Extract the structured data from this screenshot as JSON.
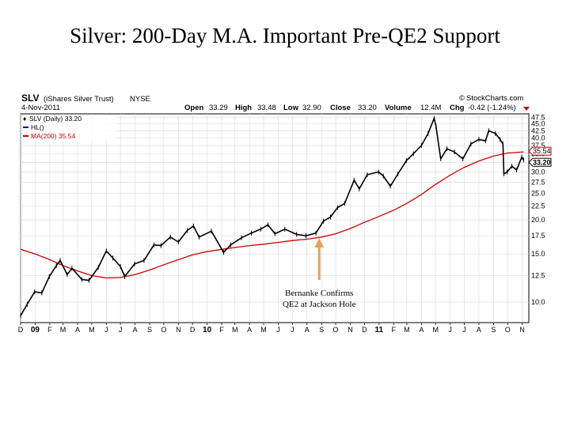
{
  "slide": {
    "title": "Silver: 200-Day M.A. Important Pre-QE2 Support"
  },
  "header": {
    "symbol": "SLV",
    "name": "(iShares Silver Trust)",
    "exchange": "NYSE",
    "date": "4-Nov-2011",
    "source": "StockCharts.com",
    "copyright": "©",
    "quote": {
      "open_label": "Open",
      "open": "33.29",
      "high_label": "High",
      "high": "33.48",
      "low_label": "Low",
      "low": "32.90",
      "close_label": "Close",
      "close": "33.20",
      "volume_label": "Volume",
      "volume": "12.4M",
      "chg_label": "Chg",
      "chg": "-0.42 (-1.24%)"
    }
  },
  "legend": {
    "price": "SLV (Daily) 33.20",
    "hl": "HL()",
    "ma": "MA(200) 35.54"
  },
  "colors": {
    "price": "#000000",
    "ma": "#cc0000",
    "arrow": "#e8a05a",
    "grid": "#d8d8d8",
    "hl_legend": "#000080"
  },
  "annotation": {
    "line1": "Bernanke Confirms",
    "line2": "QE2 at Jackson Hole",
    "date": "2010-08-27"
  },
  "chart_data": {
    "type": "line",
    "scale": "log",
    "ylim": [
      8.4,
      49
    ],
    "xlim": [
      "2008-12-01",
      "2011-11-15"
    ],
    "last_price_label": "33.20",
    "last_ma_label": "35.54",
    "y_ticks": [
      10.0,
      12.5,
      15.0,
      17.5,
      20.0,
      22.5,
      25.0,
      27.5,
      30.0,
      32.5,
      35.0,
      37.5,
      40.0,
      42.5,
      45.0,
      47.5
    ],
    "y_tick_labels": [
      "10.0",
      "12.5",
      "15.0",
      "17.5",
      "20.0",
      "22.5",
      "25.0",
      "27.5",
      "30.0",
      "32.5",
      "35.0",
      "37.5",
      "40.0",
      "42.5",
      "45.0",
      "47.5"
    ],
    "x_ticks": [
      {
        "label": "D",
        "date": "2008-12-01"
      },
      {
        "label": "09",
        "date": "2009-01-01",
        "bold": true
      },
      {
        "label": "F",
        "date": "2009-02-01"
      },
      {
        "label": "M",
        "date": "2009-03-01"
      },
      {
        "label": "A",
        "date": "2009-04-01"
      },
      {
        "label": "M",
        "date": "2009-05-01"
      },
      {
        "label": "J",
        "date": "2009-06-01"
      },
      {
        "label": "J",
        "date": "2009-07-01"
      },
      {
        "label": "A",
        "date": "2009-08-01"
      },
      {
        "label": "S",
        "date": "2009-09-01"
      },
      {
        "label": "O",
        "date": "2009-10-01"
      },
      {
        "label": "N",
        "date": "2009-11-01"
      },
      {
        "label": "D",
        "date": "2009-12-01"
      },
      {
        "label": "10",
        "date": "2010-01-01",
        "bold": true
      },
      {
        "label": "F",
        "date": "2010-02-01"
      },
      {
        "label": "M",
        "date": "2010-03-01"
      },
      {
        "label": "A",
        "date": "2010-04-01"
      },
      {
        "label": "M",
        "date": "2010-05-01"
      },
      {
        "label": "J",
        "date": "2010-06-01"
      },
      {
        "label": "J",
        "date": "2010-07-01"
      },
      {
        "label": "A",
        "date": "2010-08-01"
      },
      {
        "label": "S",
        "date": "2010-09-01"
      },
      {
        "label": "O",
        "date": "2010-10-01"
      },
      {
        "label": "N",
        "date": "2010-11-01"
      },
      {
        "label": "D",
        "date": "2010-12-01"
      },
      {
        "label": "11",
        "date": "2011-01-01",
        "bold": true
      },
      {
        "label": "F",
        "date": "2011-02-01"
      },
      {
        "label": "M",
        "date": "2011-03-01"
      },
      {
        "label": "A",
        "date": "2011-04-01"
      },
      {
        "label": "M",
        "date": "2011-05-01"
      },
      {
        "label": "J",
        "date": "2011-06-01"
      },
      {
        "label": "J",
        "date": "2011-07-01"
      },
      {
        "label": "A",
        "date": "2011-08-01"
      },
      {
        "label": "S",
        "date": "2011-09-01"
      },
      {
        "label": "O",
        "date": "2011-10-01"
      },
      {
        "label": "N",
        "date": "2011-11-01"
      }
    ],
    "series": [
      {
        "name": "SLV (Daily)",
        "points": [
          [
            "2008-12-01",
            8.9
          ],
          [
            "2008-12-15",
            9.8
          ],
          [
            "2008-12-31",
            10.9
          ],
          [
            "2009-01-15",
            10.8
          ],
          [
            "2009-01-31",
            12.4
          ],
          [
            "2009-02-15",
            13.6
          ],
          [
            "2009-02-23",
            14.2
          ],
          [
            "2009-03-10",
            12.6
          ],
          [
            "2009-03-20",
            13.3
          ],
          [
            "2009-04-10",
            12.1
          ],
          [
            "2009-04-25",
            12.0
          ],
          [
            "2009-05-15",
            13.4
          ],
          [
            "2009-06-01",
            15.4
          ],
          [
            "2009-06-15",
            14.5
          ],
          [
            "2009-07-01",
            13.5
          ],
          [
            "2009-07-10",
            12.4
          ],
          [
            "2009-07-31",
            13.8
          ],
          [
            "2009-08-20",
            14.2
          ],
          [
            "2009-09-10",
            16.2
          ],
          [
            "2009-09-25",
            16.1
          ],
          [
            "2009-10-15",
            17.3
          ],
          [
            "2009-11-01",
            16.6
          ],
          [
            "2009-11-20",
            18.3
          ],
          [
            "2009-12-03",
            19.0
          ],
          [
            "2009-12-15",
            17.3
          ],
          [
            "2010-01-10",
            18.2
          ],
          [
            "2010-02-05",
            15.2
          ],
          [
            "2010-02-20",
            16.2
          ],
          [
            "2010-03-15",
            17.2
          ],
          [
            "2010-04-05",
            17.9
          ],
          [
            "2010-04-25",
            18.5
          ],
          [
            "2010-05-10",
            19.2
          ],
          [
            "2010-05-25",
            17.8
          ],
          [
            "2010-06-15",
            18.5
          ],
          [
            "2010-07-10",
            17.7
          ],
          [
            "2010-07-30",
            17.5
          ],
          [
            "2010-08-20",
            17.9
          ],
          [
            "2010-09-05",
            19.8
          ],
          [
            "2010-09-20",
            20.5
          ],
          [
            "2010-10-05",
            22.2
          ],
          [
            "2010-10-20",
            23.0
          ],
          [
            "2010-11-09",
            28.0
          ],
          [
            "2010-11-20",
            26.0
          ],
          [
            "2010-12-07",
            29.3
          ],
          [
            "2010-12-31",
            30.0
          ],
          [
            "2011-01-10",
            29.0
          ],
          [
            "2011-01-25",
            26.6
          ],
          [
            "2011-02-10",
            29.5
          ],
          [
            "2011-02-28",
            33.0
          ],
          [
            "2011-03-15",
            35.0
          ],
          [
            "2011-04-01",
            37.5
          ],
          [
            "2011-04-15",
            41.5
          ],
          [
            "2011-04-28",
            47.2
          ],
          [
            "2011-05-02",
            44.0
          ],
          [
            "2011-05-12",
            33.5
          ],
          [
            "2011-05-25",
            36.5
          ],
          [
            "2011-06-10",
            35.5
          ],
          [
            "2011-06-28",
            33.5
          ],
          [
            "2011-07-15",
            38.0
          ],
          [
            "2011-08-01",
            39.5
          ],
          [
            "2011-08-15",
            39.0
          ],
          [
            "2011-08-22",
            42.5
          ],
          [
            "2011-09-05",
            41.5
          ],
          [
            "2011-09-15",
            39.5
          ],
          [
            "2011-09-21",
            38.0
          ],
          [
            "2011-09-23",
            29.5
          ],
          [
            "2011-09-30",
            30.0
          ],
          [
            "2011-10-10",
            31.5
          ],
          [
            "2011-10-20",
            30.5
          ],
          [
            "2011-10-31",
            34.0
          ],
          [
            "2011-11-04",
            33.2
          ]
        ]
      },
      {
        "name": "MA(200)",
        "points": [
          [
            "2008-12-01",
            15.6
          ],
          [
            "2009-01-01",
            15.0
          ],
          [
            "2009-02-01",
            14.3
          ],
          [
            "2009-03-01",
            13.6
          ],
          [
            "2009-04-01",
            13.0
          ],
          [
            "2009-05-01",
            12.5
          ],
          [
            "2009-06-01",
            12.25
          ],
          [
            "2009-07-01",
            12.3
          ],
          [
            "2009-08-01",
            12.6
          ],
          [
            "2009-09-01",
            13.1
          ],
          [
            "2009-10-01",
            13.7
          ],
          [
            "2009-11-01",
            14.3
          ],
          [
            "2009-12-01",
            14.9
          ],
          [
            "2010-01-01",
            15.3
          ],
          [
            "2010-02-01",
            15.6
          ],
          [
            "2010-03-01",
            15.85
          ],
          [
            "2010-04-01",
            16.1
          ],
          [
            "2010-05-01",
            16.3
          ],
          [
            "2010-06-01",
            16.55
          ],
          [
            "2010-07-01",
            16.8
          ],
          [
            "2010-08-01",
            17.0
          ],
          [
            "2010-09-01",
            17.3
          ],
          [
            "2010-10-01",
            17.8
          ],
          [
            "2010-11-01",
            18.6
          ],
          [
            "2010-12-01",
            19.6
          ],
          [
            "2011-01-01",
            20.6
          ],
          [
            "2011-02-01",
            21.7
          ],
          [
            "2011-03-01",
            23.0
          ],
          [
            "2011-04-01",
            24.8
          ],
          [
            "2011-05-01",
            27.0
          ],
          [
            "2011-06-01",
            29.2
          ],
          [
            "2011-07-01",
            31.2
          ],
          [
            "2011-08-01",
            32.9
          ],
          [
            "2011-09-01",
            34.3
          ],
          [
            "2011-10-01",
            35.2
          ],
          [
            "2011-11-04",
            35.54
          ]
        ]
      }
    ]
  }
}
